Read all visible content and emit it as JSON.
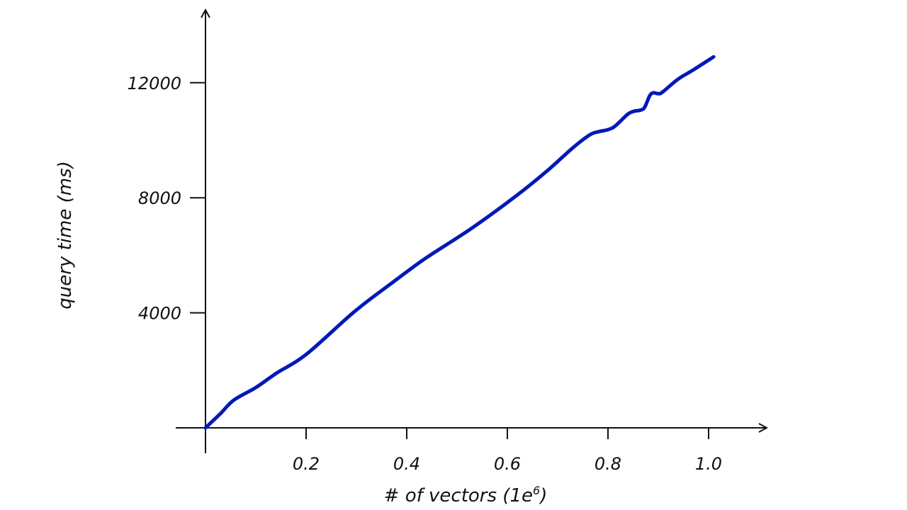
{
  "chart_data": {
    "type": "line",
    "title": "",
    "xlabel": "# of vectors (1e",
    "xlabel_sup": "6",
    "xlabel_end": ")",
    "ylabel": "query time (ms)",
    "xlim": [
      0,
      1.12
    ],
    "ylim": [
      0,
      14500
    ],
    "xticks": [
      0.2,
      0.4,
      0.6,
      0.8,
      1.0
    ],
    "xtick_labels": [
      "0.2",
      "0.4",
      "0.6",
      "0.8",
      "1.0"
    ],
    "yticks": [
      4000,
      8000,
      12000
    ],
    "ytick_labels": [
      "4000",
      "8000",
      "12000"
    ],
    "grid": false,
    "color": "#0019b8",
    "series": [
      {
        "name": "query time",
        "x": [
          0,
          0.03,
          0.056,
          0.1,
          0.141,
          0.2,
          0.296,
          0.37,
          0.437,
          0.53,
          0.62,
          0.68,
          0.731,
          0.765,
          0.782,
          0.81,
          0.842,
          0.865,
          0.873,
          0.883,
          0.89,
          0.9,
          0.908,
          0.939,
          0.97,
          1.01
        ],
        "y": [
          0,
          500,
          960,
          1400,
          1900,
          2550,
          4040,
          5030,
          5890,
          6950,
          8100,
          8950,
          9750,
          10200,
          10300,
          10440,
          10940,
          11050,
          11150,
          11550,
          11650,
          11620,
          11670,
          12120,
          12450,
          12900
        ]
      }
    ]
  }
}
